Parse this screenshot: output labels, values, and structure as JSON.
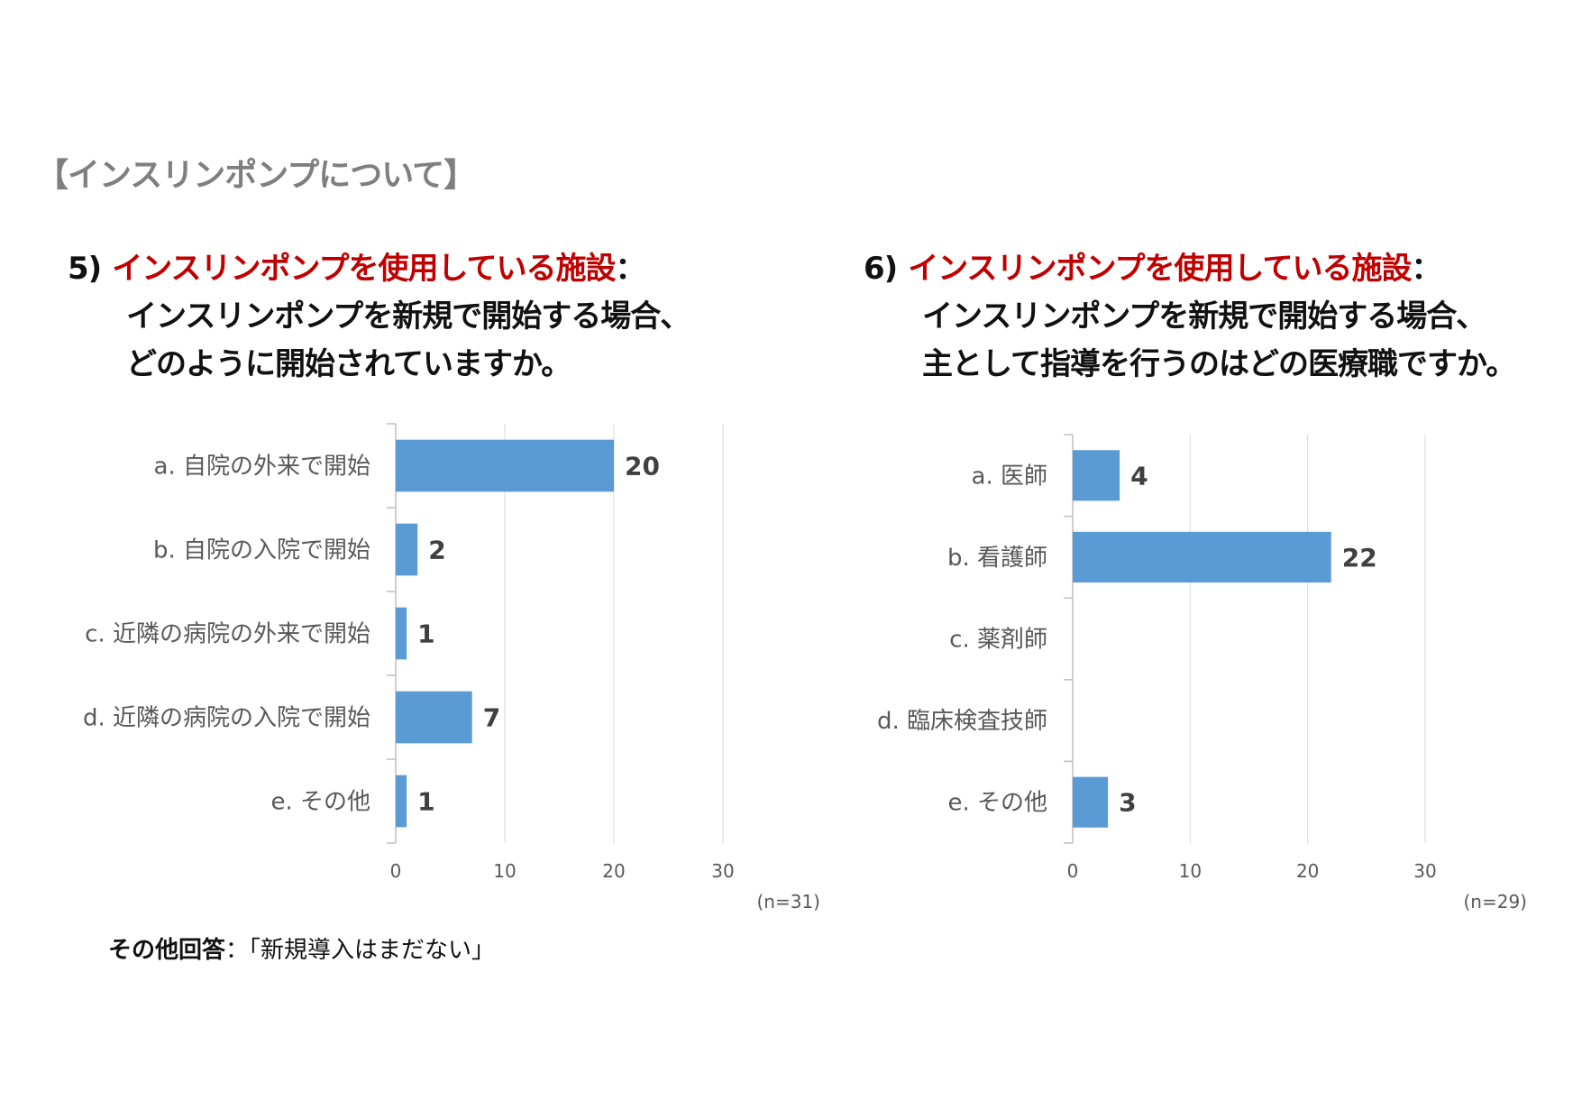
{
  "section_title": "【インスリンポンプについて】",
  "questions": [
    {
      "number": "5)",
      "topic": "インスリンポンプを使用している施設",
      "colon": "：",
      "line2": "インスリンポンプを新規で開始する場合、",
      "line3": "どのように開始されていますか。"
    },
    {
      "number": "6)",
      "topic": "インスリンポンプを使用している施設",
      "colon": "：",
      "line2": "インスリンポンプを新規で開始する場合、",
      "line3": "主として指導を行うのはどの医療職ですか。"
    }
  ],
  "note": {
    "label": "その他回答",
    "sep": "：",
    "text": "「新規導入はまだない」"
  },
  "chart_data": [
    {
      "type": "bar",
      "orientation": "horizontal",
      "categories": [
        "a. 自院の外来で開始",
        "b. 自院の入院で開始",
        "c. 近隣の病院の外来で開始",
        "d. 近隣の病院の入院で開始",
        "e. その他"
      ],
      "values": [
        20,
        2,
        1,
        7,
        1
      ],
      "data_labels": [
        "20",
        "2",
        "1",
        "7",
        "1"
      ],
      "xlim": [
        0,
        30
      ],
      "xticks": [
        "0",
        "10",
        "20",
        "30"
      ],
      "n_label": "(n=31)",
      "bar_color": "#5b9bd5",
      "grid": true
    },
    {
      "type": "bar",
      "orientation": "horizontal",
      "categories": [
        "a. 医師",
        "b. 看護師",
        "c. 薬剤師",
        "d. 臨床検査技師",
        "e. その他"
      ],
      "values": [
        4,
        22,
        0,
        0,
        3
      ],
      "data_labels": [
        "4",
        "22",
        "",
        "",
        "3"
      ],
      "xlim": [
        0,
        30
      ],
      "xticks": [
        "0",
        "10",
        "20",
        "30"
      ],
      "n_label": "(n=29)",
      "bar_color": "#5b9bd5",
      "grid": true
    }
  ]
}
